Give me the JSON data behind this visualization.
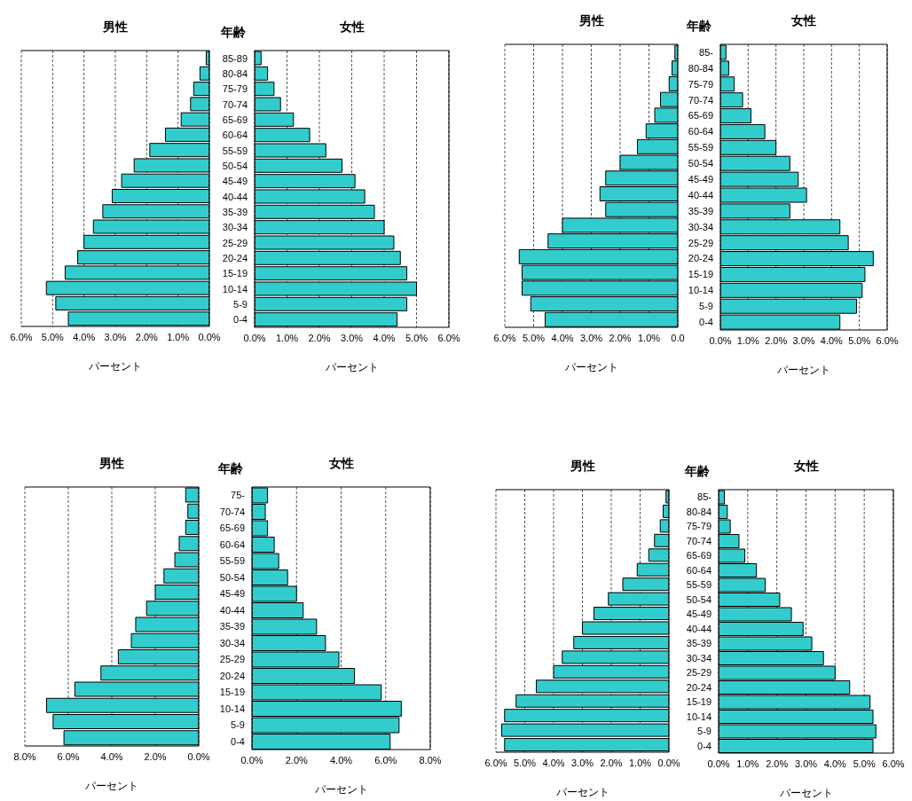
{
  "chart_data": [
    {
      "type": "bar",
      "orientation": "horizontal",
      "title": "男性",
      "xlabel": "パーセント",
      "categories": [
        null,
        null,
        null,
        null,
        null,
        null,
        null,
        null,
        null,
        null,
        null,
        null,
        null,
        null,
        null,
        null,
        null,
        null
      ],
      "values": [
        0.1,
        0.3,
        0.5,
        0.6,
        0.9,
        1.4,
        1.9,
        2.4,
        2.8,
        3.1,
        3.4,
        3.7,
        4.0,
        4.2,
        4.6,
        5.2,
        4.9,
        4.5
      ],
      "color": "#33cccc",
      "xlim": [
        6,
        0
      ],
      "xticks": [
        {
          "value": 6,
          "label": "6.0%"
        },
        {
          "value": 5,
          "label": "5.0%"
        },
        {
          "value": 4,
          "label": "4.0%"
        },
        {
          "value": 3,
          "label": "3.0%"
        },
        {
          "value": 2,
          "label": "2.0%"
        },
        {
          "value": 1,
          "label": "1.0%"
        },
        {
          "value": 0,
          "label": "0.0%"
        }
      ],
      "grid": "x"
    },
    {
      "type": "bar",
      "orientation": "horizontal",
      "title": "女性",
      "ylabel": "年齢",
      "xlabel": "パーセント",
      "categories": [
        "85-89",
        "80-84",
        "75-79",
        "70-74",
        "65-69",
        "60-64",
        "55-59",
        "50-54",
        "45-49",
        "40-44",
        "35-39",
        "30-34",
        "25-29",
        "20-24",
        "15-19",
        "10-14",
        "5-9",
        "0-4"
      ],
      "values": [
        0.2,
        0.4,
        0.6,
        0.8,
        1.2,
        1.7,
        2.2,
        2.7,
        3.1,
        3.4,
        3.7,
        4.0,
        4.3,
        4.5,
        4.7,
        5.0,
        4.7,
        4.4
      ],
      "color": "#33cccc",
      "xlim": [
        0,
        6
      ],
      "xticks": [
        {
          "value": 0,
          "label": "0.0%"
        },
        {
          "value": 1,
          "label": "1.0%"
        },
        {
          "value": 2,
          "label": "2.0%"
        },
        {
          "value": 3,
          "label": "3.0%"
        },
        {
          "value": 4,
          "label": "4.0%"
        },
        {
          "value": 5,
          "label": "5.0%"
        },
        {
          "value": 6,
          "label": "6.0%"
        }
      ],
      "grid": "x"
    },
    {
      "type": "bar",
      "orientation": "horizontal",
      "title": "男性",
      "xlabel": "パーセント",
      "categories": [
        null,
        null,
        null,
        null,
        null,
        null,
        null,
        null,
        null,
        null,
        null,
        null,
        null,
        null,
        null,
        null,
        null,
        null
      ],
      "values": [
        0.1,
        0.2,
        0.3,
        0.6,
        0.8,
        1.1,
        1.4,
        2.0,
        2.5,
        2.7,
        2.5,
        4.0,
        4.5,
        5.5,
        5.4,
        5.4,
        5.1,
        4.6
      ],
      "color": "#33cccc",
      "xlim": [
        6,
        0
      ],
      "xticks": [
        {
          "value": 6,
          "label": "6.0%"
        },
        {
          "value": 5,
          "label": "5.0%"
        },
        {
          "value": 4,
          "label": "4.0%"
        },
        {
          "value": 3,
          "label": "3.0%"
        },
        {
          "value": 2,
          "label": "2.0%"
        },
        {
          "value": 1,
          "label": "1.0%"
        },
        {
          "value": 0,
          "label": "0.0"
        }
      ],
      "grid": "x"
    },
    {
      "type": "bar",
      "orientation": "horizontal",
      "title": "女性",
      "ylabel": "年齢",
      "xlabel": "パーセント",
      "categories": [
        "85-",
        "80-84",
        "75-79",
        "70-74",
        "65-69",
        "60-64",
        "55-59",
        "50-54",
        "45-49",
        "40-44",
        "35-39",
        "30-34",
        "25-29",
        "20-24",
        "15-19",
        "10-14",
        "5-9",
        "0-4"
      ],
      "values": [
        0.2,
        0.3,
        0.5,
        0.8,
        1.1,
        1.6,
        2.0,
        2.5,
        2.8,
        3.1,
        2.5,
        4.3,
        4.6,
        5.5,
        5.2,
        5.1,
        4.9,
        4.3
      ],
      "color": "#33cccc",
      "xlim": [
        0,
        6
      ],
      "xticks": [
        {
          "value": 0,
          "label": "0.0%"
        },
        {
          "value": 1,
          "label": "1.0%"
        },
        {
          "value": 2,
          "label": "2.0%"
        },
        {
          "value": 3,
          "label": "3.0%"
        },
        {
          "value": 4,
          "label": "4.0%"
        },
        {
          "value": 5,
          "label": "5.0%"
        },
        {
          "value": 6,
          "label": "6.0%"
        }
      ],
      "grid": "x"
    },
    {
      "type": "bar",
      "orientation": "horizontal",
      "title": "男性",
      "xlabel": "パーセント",
      "categories": [
        null,
        null,
        null,
        null,
        null,
        null,
        null,
        null,
        null,
        null,
        null,
        null,
        null,
        null,
        null,
        null
      ],
      "values": [
        0.6,
        0.5,
        0.6,
        0.9,
        1.1,
        1.6,
        2.0,
        2.4,
        2.9,
        3.1,
        3.7,
        4.5,
        5.7,
        7.0,
        6.7,
        6.2
      ],
      "color": "#33cccc",
      "xlim": [
        8,
        0
      ],
      "xticks": [
        {
          "value": 8,
          "label": "8.0%"
        },
        {
          "value": 6,
          "label": "6.0%"
        },
        {
          "value": 4,
          "label": "4.0%"
        },
        {
          "value": 2,
          "label": "2.0%"
        },
        {
          "value": 0,
          "label": "0.0%"
        }
      ],
      "grid": "x"
    },
    {
      "type": "bar",
      "orientation": "horizontal",
      "title": "女性",
      "ylabel": "年齢",
      "xlabel": "パーセント",
      "categories": [
        "75-",
        "70-74",
        "65-69",
        "60-64",
        "55-59",
        "50-54",
        "45-49",
        "40-44",
        "35-39",
        "30-34",
        "25-29",
        "20-24",
        "15-19",
        "10-14",
        "5-9",
        "0-4"
      ],
      "values": [
        0.7,
        0.6,
        0.7,
        1.0,
        1.2,
        1.6,
        2.0,
        2.3,
        2.9,
        3.3,
        3.9,
        4.6,
        5.8,
        6.7,
        6.6,
        6.2
      ],
      "color": "#33cccc",
      "xlim": [
        0,
        8
      ],
      "xticks": [
        {
          "value": 0,
          "label": "0.0%"
        },
        {
          "value": 2,
          "label": "2.0%"
        },
        {
          "value": 4,
          "label": "4.0%"
        },
        {
          "value": 6,
          "label": "6.0%"
        },
        {
          "value": 8,
          "label": "8.0%"
        }
      ],
      "grid": "x"
    },
    {
      "type": "bar",
      "orientation": "horizontal",
      "title": "男性",
      "xlabel": "パーセント",
      "categories": [
        null,
        null,
        null,
        null,
        null,
        null,
        null,
        null,
        null,
        null,
        null,
        null,
        null,
        null,
        null,
        null,
        null,
        null
      ],
      "values": [
        0.1,
        0.2,
        0.3,
        0.5,
        0.7,
        1.1,
        1.6,
        2.1,
        2.6,
        3.0,
        3.3,
        3.7,
        4.0,
        4.6,
        5.3,
        5.7,
        5.8,
        5.7
      ],
      "color": "#33cccc",
      "xlim": [
        6,
        0
      ],
      "xticks": [
        {
          "value": 6,
          "label": "6.0%"
        },
        {
          "value": 5,
          "label": "5.0%"
        },
        {
          "value": 4,
          "label": "4.0%"
        },
        {
          "value": 3,
          "label": "3.0%"
        },
        {
          "value": 2,
          "label": "2.0%"
        },
        {
          "value": 1,
          "label": "1.0%"
        },
        {
          "value": 0,
          "label": "0.0%"
        }
      ],
      "grid": "x"
    },
    {
      "type": "bar",
      "orientation": "horizontal",
      "title": "女性",
      "ylabel": "年齢",
      "xlabel": "パーセント",
      "categories": [
        "85-",
        "80-84",
        "75-79",
        "70-74",
        "65-69",
        "60-64",
        "55-59",
        "50-54",
        "45-49",
        "40-44",
        "35-39",
        "30-34",
        "25-29",
        "20-24",
        "15-19",
        "10-14",
        "5-9",
        "0-4"
      ],
      "values": [
        0.2,
        0.3,
        0.4,
        0.7,
        0.9,
        1.3,
        1.6,
        2.1,
        2.5,
        2.9,
        3.2,
        3.6,
        4.0,
        4.5,
        5.2,
        5.3,
        5.4,
        5.3
      ],
      "color": "#33cccc",
      "xlim": [
        0,
        6
      ],
      "xticks": [
        {
          "value": 0,
          "label": "0.0%"
        },
        {
          "value": 1,
          "label": "1.0%"
        },
        {
          "value": 2,
          "label": "2.0%"
        },
        {
          "value": 3,
          "label": "3.0%"
        },
        {
          "value": 4,
          "label": "4.0%"
        },
        {
          "value": 5,
          "label": "5.0%"
        },
        {
          "value": 6,
          "label": "6.0%"
        }
      ],
      "grid": "x"
    }
  ]
}
